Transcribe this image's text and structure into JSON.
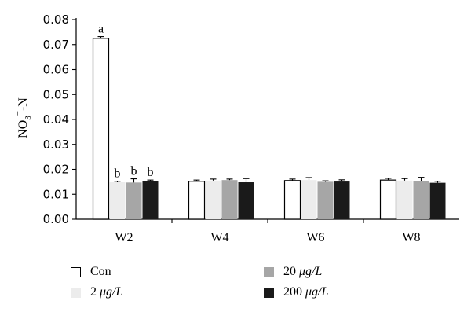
{
  "chart_data": {
    "type": "bar",
    "ylabel": "NO3−-N",
    "xlabel": "",
    "title": "",
    "ylim": [
      0,
      0.08
    ],
    "yticks": [
      "0.00",
      "0.01",
      "0.02",
      "0.03",
      "0.04",
      "0.05",
      "0.06",
      "0.07",
      "0.08"
    ],
    "grid": false,
    "legend_position": "bottom",
    "categories": [
      "W2",
      "W4",
      "W6",
      "W8"
    ],
    "series": [
      {
        "name": "Con",
        "color": "#ffffff",
        "values": [
          0.0725,
          0.0152,
          0.0155,
          0.0157
        ],
        "errors": [
          0.0007,
          0.0005,
          0.0006,
          0.0007
        ],
        "labels": [
          "a",
          "",
          "",
          ""
        ]
      },
      {
        "name": "2 μg/L",
        "color": "#ececec",
        "values": [
          0.0148,
          0.0155,
          0.0157,
          0.0155
        ],
        "errors": [
          0.0004,
          0.0006,
          0.001,
          0.0008
        ],
        "labels": [
          "b",
          "",
          "",
          ""
        ]
      },
      {
        "name": "20 μg/L",
        "color": "#a6a6a6",
        "values": [
          0.0147,
          0.0157,
          0.015,
          0.0153
        ],
        "errors": [
          0.0015,
          0.0004,
          0.0004,
          0.0015
        ],
        "labels": [
          "b",
          "",
          "",
          ""
        ]
      },
      {
        "name": "200 μg/L",
        "color": "#1a1a1a",
        "values": [
          0.0153,
          0.0148,
          0.0151,
          0.0146
        ],
        "errors": [
          0.0004,
          0.0015,
          0.0007,
          0.0006
        ],
        "labels": [
          "b",
          "",
          "",
          ""
        ]
      }
    ]
  },
  "legend": {
    "items": [
      {
        "prefix": "Con",
        "unit": "",
        "color": "#ffffff"
      },
      {
        "prefix": "2 ",
        "unit": "μg/L",
        "color": "#ececec"
      },
      {
        "prefix": "20 ",
        "unit": "μg/L",
        "color": "#a6a6a6"
      },
      {
        "prefix": "200 ",
        "unit": "μg/L",
        "color": "#1a1a1a"
      }
    ]
  }
}
